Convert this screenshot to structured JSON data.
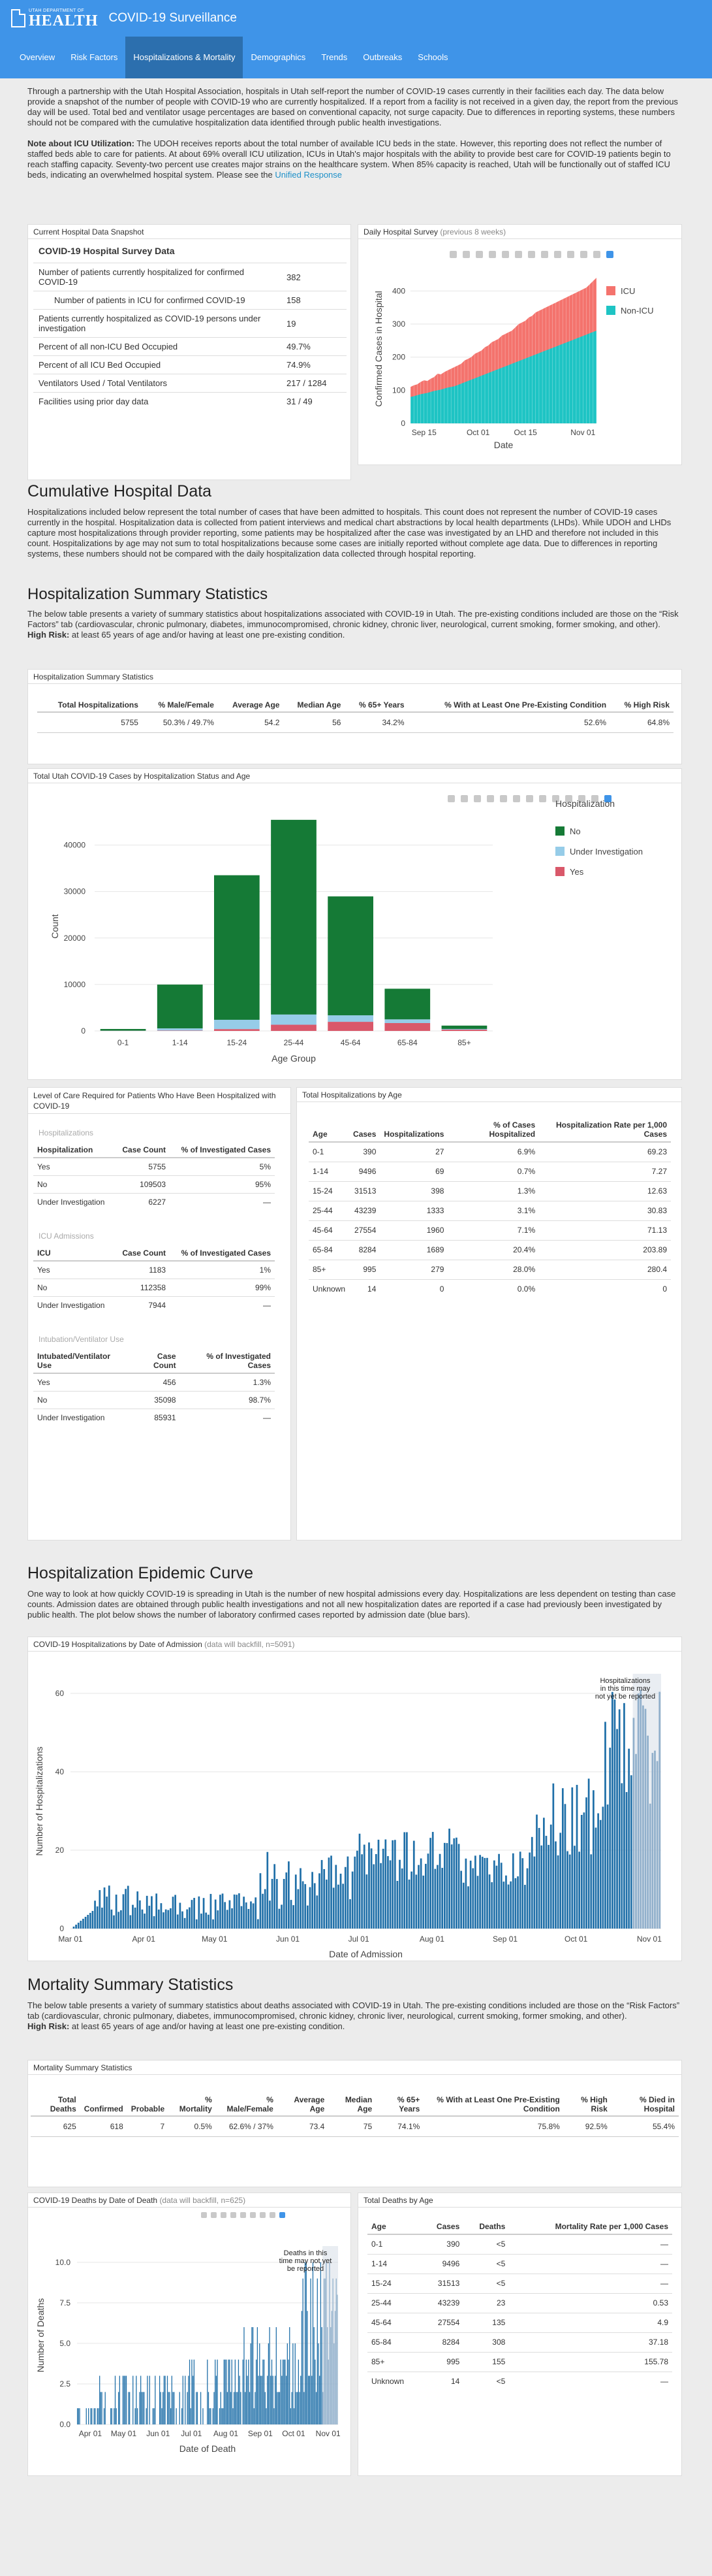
{
  "header": {
    "logo_top": "UTAH DEPARTMENT OF",
    "logo_main": "HEALTH",
    "title": "COVID-19 Surveillance"
  },
  "nav": [
    "Overview",
    "Risk Factors",
    "Hospitalizations & Mortality",
    "Demographics",
    "Trends",
    "Outbreaks",
    "Schools"
  ],
  "intro": {
    "p1": "Through a partnership with the Utah Hospital Association, hospitals in Utah self-report the number of COVID-19 cases currently in their facilities each day. The data below provide a snapshot of the number of people with COVID-19 who are currently hospitalized. If a report from a facility is not received in a given day, the report from the previous day will be used. Total bed and ventilator usage percentages are based on conventional capacity, not surge capacity. Due to differences in reporting systems, these numbers should not be compared with the cumulative hospitalization data identified through public health investigations.",
    "note_label": "Note about ICU Utilization:",
    "note": " The UDOH receives reports about the total number of available ICU beds in the state. However, this reporting does not reflect the number of staffed beds able to care for patients. At about 69% overall ICU utilization, ICUs in Utah's major hospitals with the ability to provide best care for COVID-19 patients begin to reach staffing capacity. Seventy-two percent use creates major strains on the healthcare system. When 85% capacity is reached, Utah will be functionally out of staffed ICU beds, indicating an overwhelmed hospital system. Please see the ",
    "link": "Unified Response"
  },
  "snapshot": {
    "title": "Current Hospital Data Snapshot",
    "heading": "COVID-19 Hospital Survey Data",
    "rows": [
      {
        "label": "Number of patients currently hospitalized for confirmed COVID-19",
        "value": "382"
      },
      {
        "label": "Number of patients in ICU for confirmed COVID-19",
        "value": "158"
      },
      {
        "label": "Patients currently hospitalized as COVID-19 persons under investigation",
        "value": "19"
      },
      {
        "label": "Percent of all non-ICU Bed Occupied",
        "value": "49.7%"
      },
      {
        "label": "Percent of all ICU Bed Occupied",
        "value": "74.9%"
      },
      {
        "label": "Ventilators Used / Total Ventilators",
        "value": "217 / 1284"
      },
      {
        "label": "Facilities using prior day data",
        "value": "31 / 49"
      }
    ]
  },
  "daily": {
    "title": "Daily Hospital Survey",
    "subtitle": "(previous 8 weeks)",
    "legend": [
      "ICU",
      "Non-ICU"
    ],
    "colors": {
      "icu": "#f4736d",
      "non_icu": "#1ec4c4"
    }
  },
  "cumulative": {
    "heading": "Cumulative Hospital Data",
    "text": "Hospitalizations included below represent the total number of cases that have been admitted to hospitals. This count does not represent the number of COVID-19 cases currently in the hospital. Hospitalization data is collected from patient interviews and medical chart abstractions by local health departments (LHDs). While UDOH and LHDs capture most hospitalizations through provider reporting, some patients may be hospitalized after the case was investigated by an LHD and therefore not included in this count. Hospitalizations by age may not sum to total hospitalizations because some cases are initially reported without complete age data. Due to differences in reporting systems, these numbers should not be compared with the daily hospitalization data collected through hospital reporting."
  },
  "hosp_summary": {
    "heading": "Hospitalization Summary Statistics",
    "text": "The below table presents a variety of summary statistics about hospitalizations associated with COVID-19 in Utah. The pre-existing conditions included are those on the “Risk Factors” tab (cardiovascular, chronic pulmonary, diabetes, immunocompromised, chronic kidney, chronic liver, neurological, current smoking, former smoking, and other).",
    "risk_label": "High Risk:",
    "risk_text": " at least 65 years of age and/or having at least one pre-existing condition.",
    "box_title": "Hospitalization Summary Statistics",
    "headers": [
      "Total Hospitalizations",
      "% Male/Female",
      "Average Age",
      "Median Age",
      "% 65+ Years",
      "% With at Least One Pre-Existing Condition",
      "% High Risk"
    ],
    "values": [
      "5755",
      "50.3% / 49.7%",
      "54.2",
      "56",
      "34.2%",
      "52.6%",
      "64.8%"
    ]
  },
  "age_chart": {
    "title": "Total Utah COVID-19 Cases by Hospitalization Status and Age",
    "legend_title": "Hospitalization",
    "legend": [
      "No",
      "Under Investigation",
      "Yes"
    ],
    "colors": {
      "No": "#157a36",
      "Under Investigation": "#96cce8",
      "Yes": "#d9586a"
    }
  },
  "level_of_care": {
    "title": "Level of Care Required for Patients Who Have Been Hospitalized with COVID-19",
    "sections": [
      {
        "sub": "Hospitalizations",
        "headers": [
          "Hospitalization",
          "Case Count",
          "% of Investigated Cases"
        ],
        "rows": [
          [
            "Yes",
            "5755",
            "5%"
          ],
          [
            "No",
            "109503",
            "95%"
          ],
          [
            "Under Investigation",
            "6227",
            "—"
          ]
        ]
      },
      {
        "sub": "ICU Admissions",
        "headers": [
          "ICU",
          "Case Count",
          "% of Investigated Cases"
        ],
        "rows": [
          [
            "Yes",
            "1183",
            "1%"
          ],
          [
            "No",
            "112358",
            "99%"
          ],
          [
            "Under Investigation",
            "7944",
            "—"
          ]
        ]
      },
      {
        "sub": "Intubation/Ventilator Use",
        "headers": [
          "Intubated/Ventilator Use",
          "Case Count",
          "% of Investigated Cases"
        ],
        "rows": [
          [
            "Yes",
            "456",
            "1.3%"
          ],
          [
            "No",
            "35098",
            "98.7%"
          ],
          [
            "Under Investigation",
            "85931",
            "—"
          ]
        ]
      }
    ]
  },
  "hosp_by_age": {
    "title": "Total Hospitalizations by Age",
    "headers": [
      "Age",
      "Cases",
      "Hospitalizations",
      "% of Cases Hospitalized",
      "Hospitalization Rate per 1,000 Cases"
    ],
    "rows": [
      [
        "0-1",
        "390",
        "27",
        "6.9%",
        "69.23"
      ],
      [
        "1-14",
        "9496",
        "69",
        "0.7%",
        "7.27"
      ],
      [
        "15-24",
        "31513",
        "398",
        "1.3%",
        "12.63"
      ],
      [
        "25-44",
        "43239",
        "1333",
        "3.1%",
        "30.83"
      ],
      [
        "45-64",
        "27554",
        "1960",
        "7.1%",
        "71.13"
      ],
      [
        "65-84",
        "8284",
        "1689",
        "20.4%",
        "203.89"
      ],
      [
        "85+",
        "995",
        "279",
        "28.0%",
        "280.4"
      ],
      [
        "Unknown",
        "14",
        "0",
        "0.0%",
        "0"
      ]
    ]
  },
  "epi": {
    "heading": "Hospitalization Epidemic Curve",
    "text": "One way to look at how quickly COVID-19 is spreading in Utah is the number of new hospital admissions every day. Hospitalizations are less dependent on testing than case counts. Admission dates are obtained through public health investigations and not all new hospitalization dates are reported if a case had previously been investigated by public health. The plot below shows the number of laboratory confirmed cases reported by admission date (blue bars).",
    "title": "COVID-19 Hospitalizations by Date of Admission",
    "subtitle": "(data will backfill, n=5091)",
    "annotation": [
      "Hospitalizations",
      "in this time may",
      "not yet be reported"
    ]
  },
  "mort": {
    "heading": "Mortality Summary Statistics",
    "text": "The below table presents a variety of summary statistics about deaths associated with COVID-19 in Utah. The pre-existing conditions included are those on the “Risk Factors” tab (cardiovascular, chronic pulmonary, diabetes, immunocompromised, chronic kidney, chronic liver, neurological, current smoking, former smoking, and other).",
    "risk_label": "High Risk:",
    "risk_text": " at least 65 years of age and/or having at least one pre-existing condition.",
    "box_title": "Mortality Summary Statistics",
    "headers": [
      "Total Deaths",
      "Confirmed",
      "Probable",
      "% Mortality",
      "% Male/Female",
      "Average Age",
      "Median Age",
      "% 65+ Years",
      "% With at Least One Pre-Existing Condition",
      "% High Risk",
      "% Died in Hospital"
    ],
    "values": [
      "625",
      "618",
      "7",
      "0.5%",
      "62.6% / 37%",
      "73.4",
      "75",
      "74.1%",
      "75.8%",
      "92.5%",
      "55.4%"
    ]
  },
  "deaths_date": {
    "title": "COVID-19 Deaths by Date of Death",
    "subtitle": "(data will backfill, n=625)",
    "annotation": [
      "Deaths in this",
      "time may not yet",
      "be reported"
    ]
  },
  "deaths_age": {
    "title": "Total Deaths by Age",
    "headers": [
      "Age",
      "Cases",
      "Deaths",
      "Mortality Rate per 1,000 Cases"
    ],
    "rows": [
      [
        "0-1",
        "390",
        "<5",
        "—"
      ],
      [
        "1-14",
        "9496",
        "<5",
        "—"
      ],
      [
        "15-24",
        "31513",
        "<5",
        "—"
      ],
      [
        "25-44",
        "43239",
        "23",
        "0.53"
      ],
      [
        "45-64",
        "27554",
        "135",
        "4.9"
      ],
      [
        "65-84",
        "8284",
        "308",
        "37.18"
      ],
      [
        "85+",
        "995",
        "155",
        "155.78"
      ],
      [
        "Unknown",
        "14",
        "<5",
        "—"
      ]
    ]
  },
  "chart_data": [
    {
      "type": "area",
      "id": "daily_survey",
      "xlabel": "Date",
      "ylabel": "Confirmed Cases in Hospital",
      "ylim": [
        0,
        450
      ],
      "x_ticks": [
        "Sep 15",
        "Oct 01",
        "Oct 15",
        "Nov 01"
      ],
      "y_ticks": [
        0,
        100,
        200,
        300,
        400
      ],
      "series": [
        {
          "name": "ICU",
          "values_total": [
            110,
            115,
            118,
            125,
            130,
            128,
            135,
            140,
            150,
            148,
            155,
            160,
            165,
            170,
            175,
            180,
            190,
            195,
            200,
            210,
            215,
            220,
            230,
            235,
            245,
            250,
            255,
            265,
            270,
            275,
            280,
            290,
            300,
            305,
            310,
            320,
            325,
            335,
            340,
            345,
            350,
            355,
            360,
            365,
            370,
            375,
            380,
            385,
            390,
            395,
            400,
            405,
            410,
            420,
            430,
            440
          ]
        },
        {
          "name": "Non-ICU",
          "values": [
            80,
            82,
            85,
            88,
            90,
            92,
            95,
            98,
            100,
            102,
            105,
            108,
            110,
            112,
            116,
            120,
            124,
            128,
            132,
            136,
            140,
            144,
            148,
            152,
            156,
            160,
            164,
            168,
            172,
            176,
            180,
            184,
            188,
            192,
            196,
            200,
            204,
            208,
            212,
            216,
            220,
            224,
            228,
            232,
            236,
            240,
            244,
            248,
            252,
            256,
            260,
            264,
            268,
            272,
            276,
            280
          ]
        }
      ]
    },
    {
      "type": "bar",
      "id": "cases_by_age",
      "xlabel": "Age Group",
      "ylabel": "Count",
      "ylim": [
        0,
        45000
      ],
      "categories": [
        "0-1",
        "1-14",
        "15-24",
        "25-44",
        "45-64",
        "65-84",
        "85+"
      ],
      "y_ticks": [
        0,
        10000,
        20000,
        30000,
        40000
      ],
      "series": [
        {
          "name": "No",
          "values": [
            363,
            9427,
            31115,
            41906,
            25594,
            6595,
            716
          ]
        },
        {
          "name": "Under Investigation",
          "values": [
            30,
            480,
            2000,
            2200,
            1400,
            800,
            150
          ]
        },
        {
          "name": "Yes",
          "values": [
            27,
            69,
            398,
            1333,
            1960,
            1689,
            279
          ]
        }
      ]
    },
    {
      "type": "bar",
      "id": "hosp_by_admission",
      "xlabel": "Date of Admission",
      "ylabel": "Number of Hospitalizations",
      "ylim": [
        0,
        65
      ],
      "x_ticks": [
        "Mar 01",
        "Apr 01",
        "May 01",
        "Jun 01",
        "Jul 01",
        "Aug 01",
        "Sep 01",
        "Oct 01",
        "Nov 01"
      ],
      "y_ticks": [
        0,
        20,
        40,
        60
      ]
    },
    {
      "type": "bar",
      "id": "deaths_by_date",
      "xlabel": "Date of Death",
      "ylabel": "Number of Deaths",
      "ylim": [
        0,
        11
      ],
      "x_ticks": [
        "Apr 01",
        "May 01",
        "Jun 01",
        "Jul 01",
        "Aug 01",
        "Sep 01",
        "Oct 01",
        "Nov 01"
      ],
      "y_ticks": [
        0,
        2.5,
        5.0,
        7.5,
        10.0
      ]
    }
  ]
}
